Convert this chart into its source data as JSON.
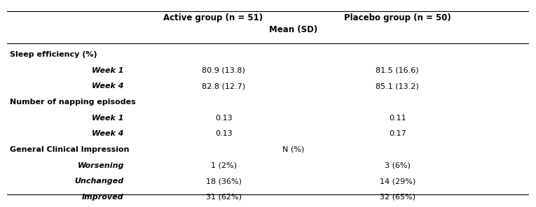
{
  "col_header_active": "Active group (n = 51)",
  "col_header_placebo": "Placebo group (n = 50)",
  "subheader": "Mean (SD)",
  "rows": [
    {
      "label": "Sleep efficiency (%)",
      "indent": 0,
      "bold": true,
      "italic": false,
      "active": "",
      "placebo": ""
    },
    {
      "label": "Week 1",
      "indent": 1,
      "bold": true,
      "italic": true,
      "active": "80.9 (13.8)",
      "placebo": "81.5 (16.6)"
    },
    {
      "label": "Week 4",
      "indent": 1,
      "bold": true,
      "italic": true,
      "active": "82.8 (12.7)",
      "placebo": "85.1 (13.2)"
    },
    {
      "label": "Number of napping episodes",
      "indent": 0,
      "bold": true,
      "italic": false,
      "active": "",
      "placebo": ""
    },
    {
      "label": "Week 1",
      "indent": 1,
      "bold": true,
      "italic": true,
      "active": "0.13",
      "placebo": "0.11"
    },
    {
      "label": "Week 4",
      "indent": 1,
      "bold": true,
      "italic": true,
      "active": "0.13",
      "placebo": "0.17"
    },
    {
      "label": "General Clinical Impression",
      "indent": 0,
      "bold": true,
      "italic": false,
      "active": "",
      "placebo": "",
      "midlabel": "N (%)"
    },
    {
      "label": "Worsening",
      "indent": 1,
      "bold": true,
      "italic": true,
      "active": "1 (2%)",
      "placebo": "3 (6%)"
    },
    {
      "label": "Unchanged",
      "indent": 1,
      "bold": true,
      "italic": true,
      "active": "18 (36%)",
      "placebo": "14 (29%)"
    },
    {
      "label": "Improved",
      "indent": 1,
      "bold": true,
      "italic": true,
      "active": "31 (62%)",
      "placebo": "32 (65%)"
    }
  ],
  "background_color": "#ffffff",
  "text_color": "#000000",
  "font_size": 8.0,
  "header_font_size": 8.5
}
